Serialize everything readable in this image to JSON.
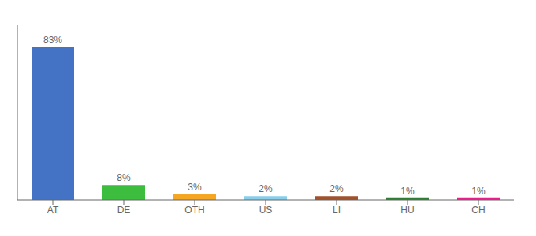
{
  "chart_data": {
    "type": "bar",
    "categories": [
      "AT",
      "DE",
      "OTH",
      "US",
      "LI",
      "HU",
      "CH"
    ],
    "values": [
      83,
      8,
      3,
      2,
      2,
      1,
      1
    ],
    "value_labels": [
      "83%",
      "8%",
      "3%",
      "2%",
      "2%",
      "1%",
      "1%"
    ],
    "data_labels": true,
    "colors": [
      "#4472C4",
      "#3DBD3D",
      "#F5A623",
      "#87CEEB",
      "#A0522D",
      "#2E7D32",
      "#E91E8C"
    ],
    "ylim": [
      0,
      95
    ],
    "tick_labels": "x",
    "grid": false
  }
}
